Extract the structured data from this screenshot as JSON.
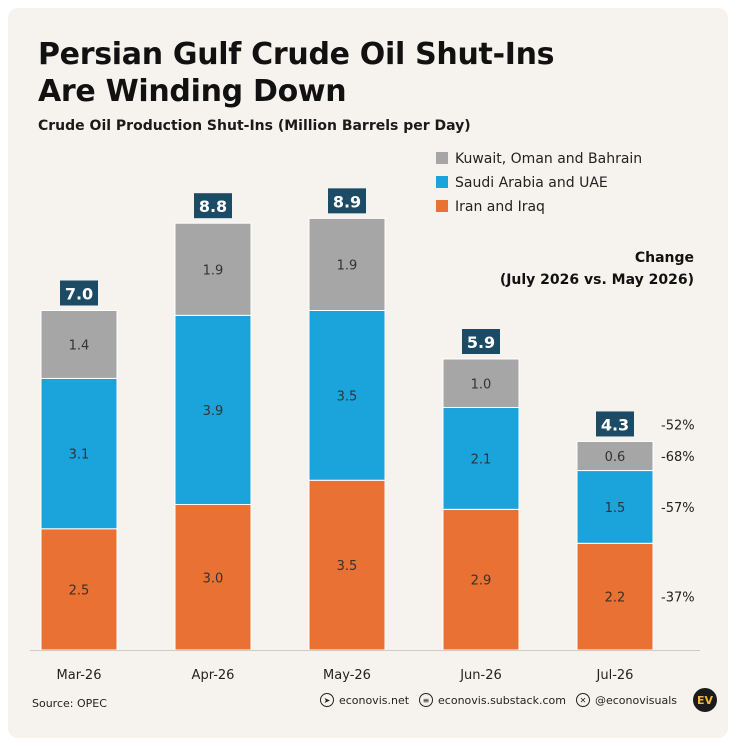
{
  "title": "Persian Gulf Crude Oil Shut-Ins Are Winding Down",
  "subtitle": "Crude Oil Production Shut-Ins (Million Barrels per Day)",
  "change_header": {
    "line1": "Change",
    "line2": "(July 2026 vs. May 2026)"
  },
  "footer": {
    "source": "Source: OPEC",
    "links": [
      {
        "icon": "cursor-icon",
        "label": "econovis.net"
      },
      {
        "icon": "substack-icon",
        "label": "econovis.substack.com"
      },
      {
        "icon": "x-icon",
        "label": "@econovisuals"
      }
    ],
    "logo": "EV"
  },
  "colors": {
    "kuwait": "#a6a6a6",
    "saudi": "#1ba3dc",
    "iran": "#e97133",
    "total_label_bg": "#1c4b66"
  },
  "chart_data": {
    "type": "bar",
    "stacked": true,
    "categories": [
      "Mar-26",
      "Apr-26",
      "May-26",
      "Jun-26",
      "Jul-26"
    ],
    "series": [
      {
        "name": "Iran and Iraq",
        "values": [
          2.5,
          3.0,
          3.5,
          2.9,
          2.2
        ],
        "color": "#e97133"
      },
      {
        "name": "Saudi Arabia and UAE",
        "values": [
          3.1,
          3.9,
          3.5,
          2.1,
          1.5
        ],
        "color": "#1ba3dc"
      },
      {
        "name": "Kuwait, Oman and Bahrain",
        "values": [
          1.4,
          1.9,
          1.9,
          1.0,
          0.6
        ],
        "color": "#a6a6a6"
      }
    ],
    "totals": [
      7.0,
      8.8,
      8.9,
      5.9,
      4.3
    ],
    "legend_order": [
      "Kuwait, Oman and Bahrain",
      "Saudi Arabia and UAE",
      "Iran and Iraq"
    ],
    "legend_position": "top-right",
    "change_labels": [
      {
        "segment": "total",
        "label": "-52%"
      },
      {
        "segment": "Kuwait, Oman and Bahrain",
        "label": "-68%"
      },
      {
        "segment": "Saudi Arabia and UAE",
        "label": "-57%"
      },
      {
        "segment": "Iran and Iraq",
        "label": "-37%"
      }
    ],
    "grid": false,
    "xlabel": "",
    "ylabel": ""
  }
}
